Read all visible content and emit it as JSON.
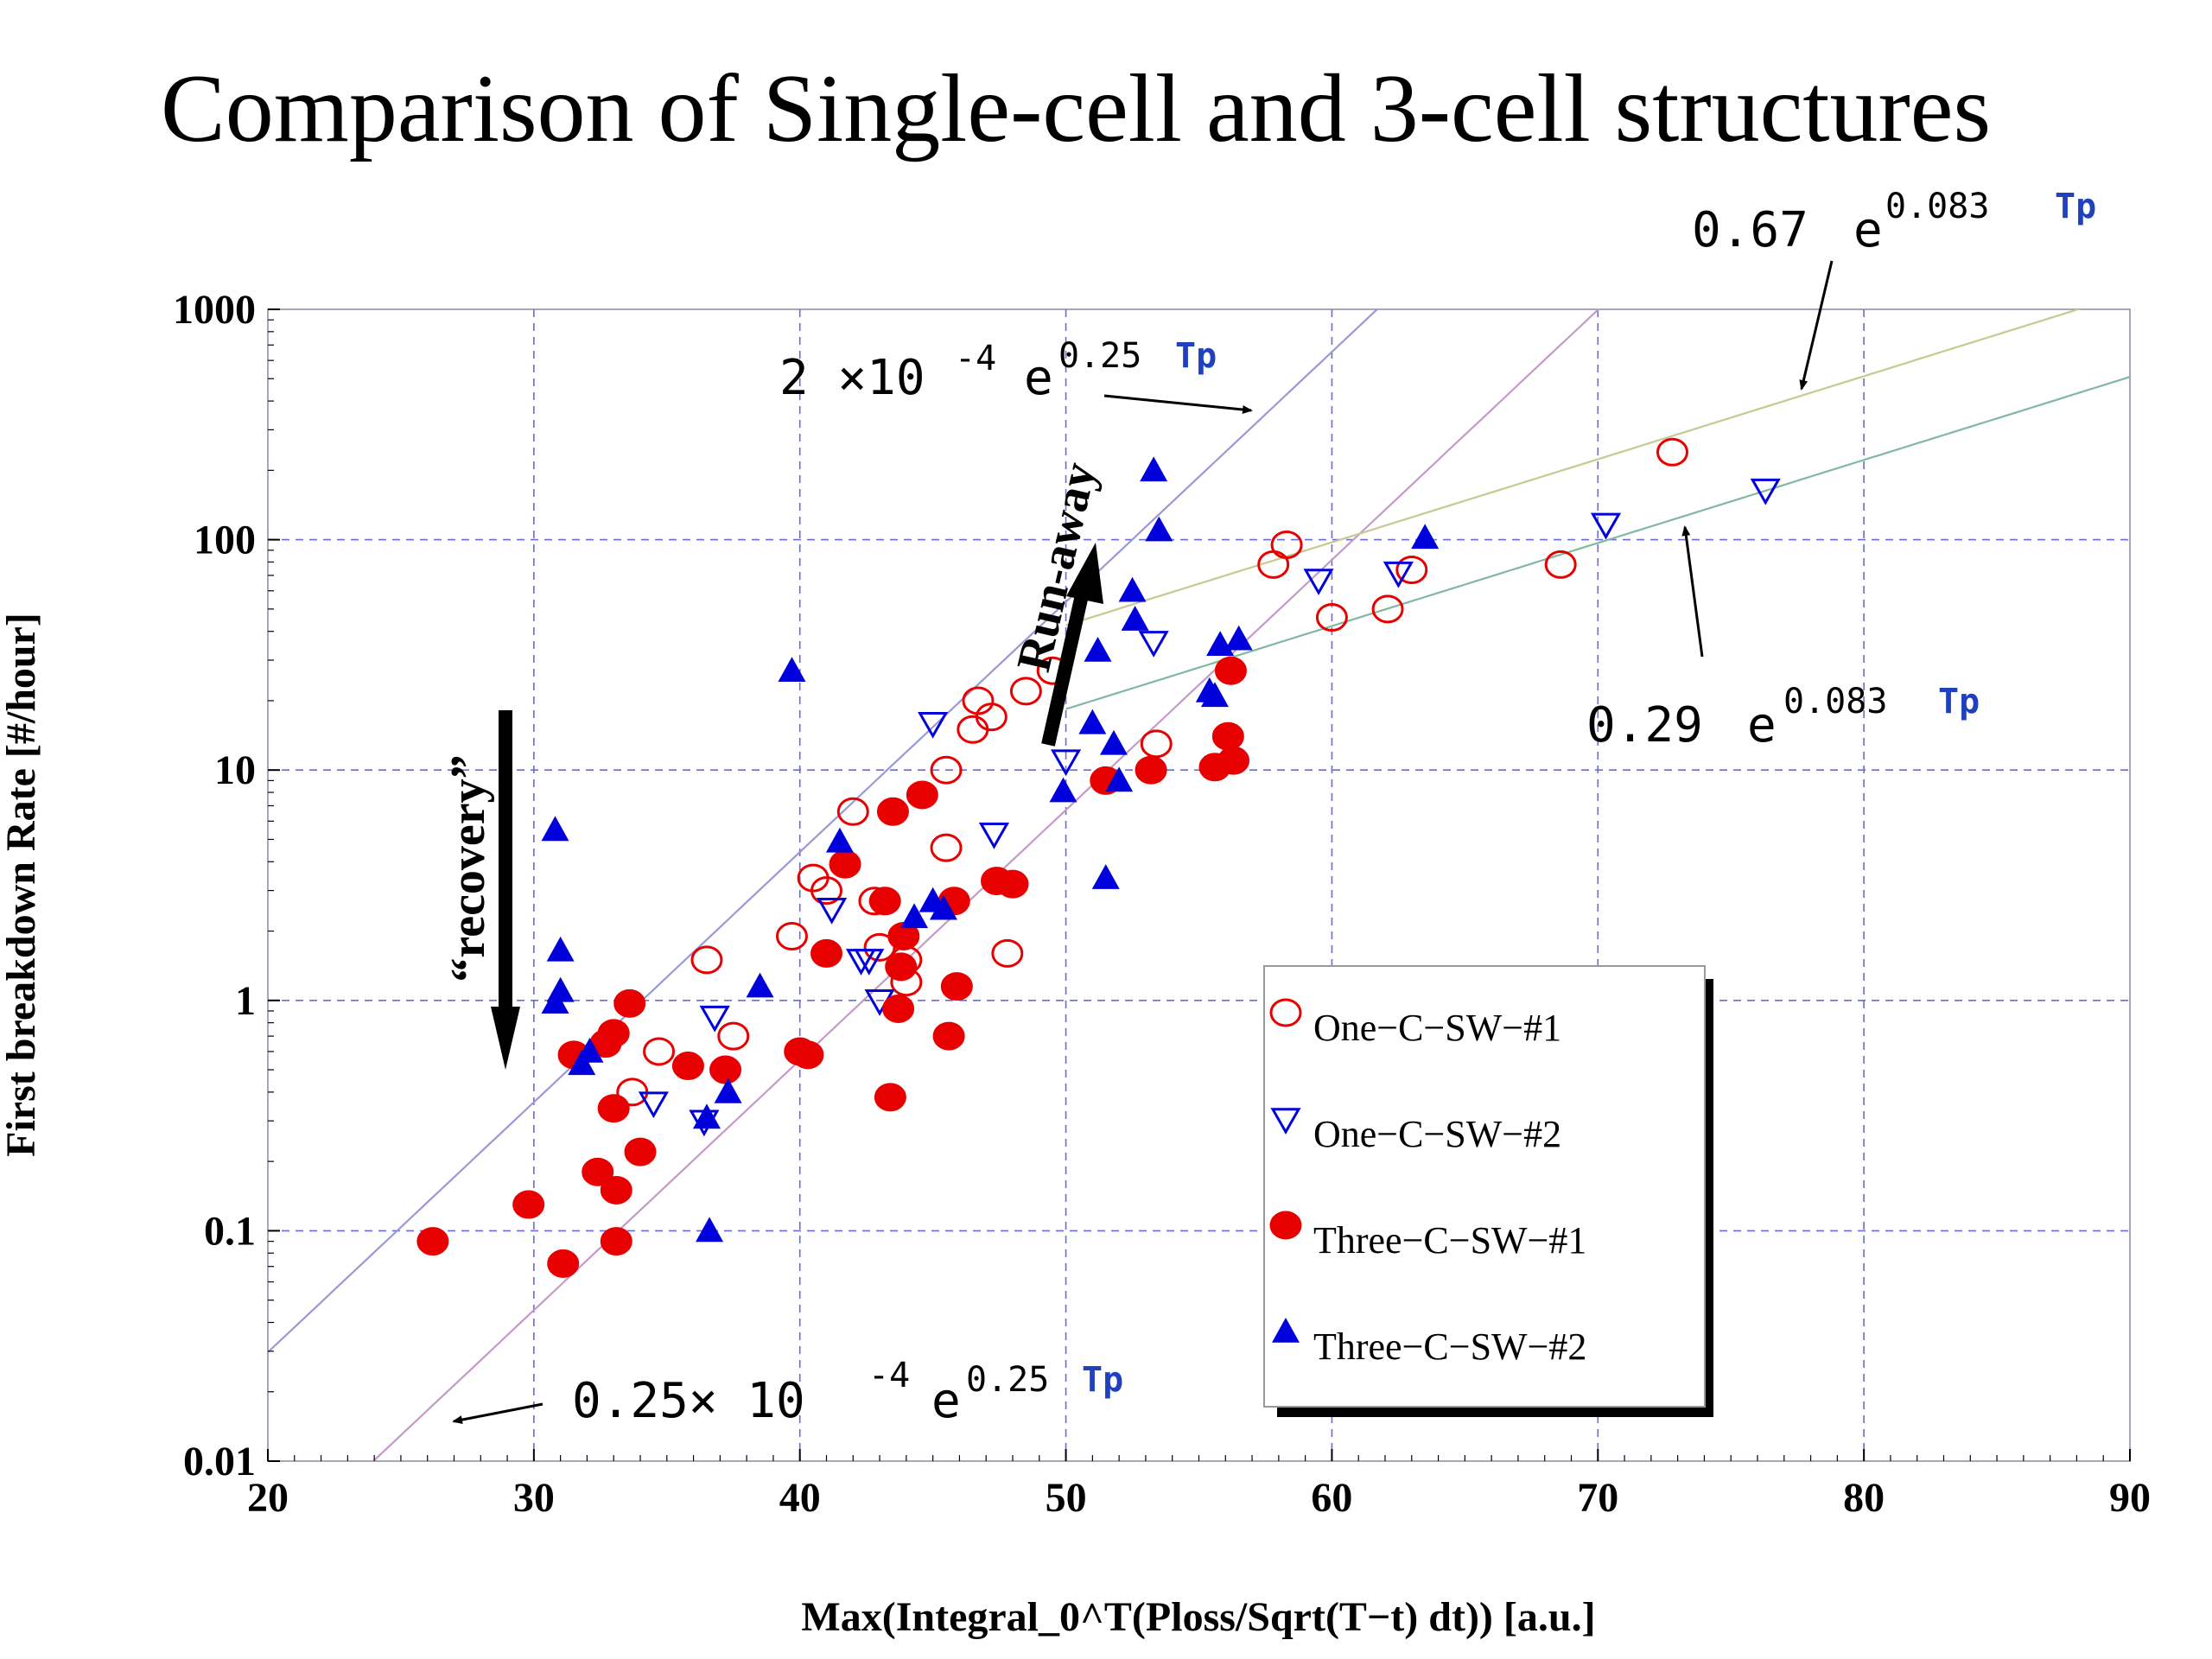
{
  "title": "Comparison of Single-cell and 3-cell structures",
  "colors": {
    "red_series": "#e80000",
    "blue_series": "#0000dd",
    "grid": "#6a6ad8",
    "fit_steep": "#9a98d8",
    "fit_steep_low": "#c49ac8",
    "fit_one": "#c8c890",
    "fit_two": "#80b8a0",
    "arrow": "#000000"
  },
  "annotations": {
    "runaway": "Run-away",
    "recovery": "“recovery”"
  },
  "fit_labels": {
    "top_right": {
      "coef": "0.67",
      "e": "e",
      "exp": "0.083",
      "var": "Tp"
    },
    "middle_right": {
      "coef": "0.29",
      "e": "e",
      "exp": "0.083",
      "var": "Tp"
    },
    "upper_left": {
      "coef": "2 ×10",
      "sup": "-4",
      "e": "e",
      "exp": "0.25",
      "var": "Tp"
    },
    "lower_left": {
      "coef": "0.25× 10",
      "sup": "-4",
      "e": "e",
      "exp": "0.25",
      "var": "Tp"
    }
  },
  "chart_data": {
    "type": "scatter",
    "title": "Comparison of Single-cell and 3-cell structures",
    "xlabel": "Max(Integral_0^T(Ploss/Sqrt(T−t) dt)) [a.u.]",
    "ylabel": "First breakdown Rate [#/hour]",
    "xlim": [
      20,
      90
    ],
    "ylim": [
      0.01,
      1000
    ],
    "yscale": "log",
    "grid": true,
    "legend_position": "bottom-right",
    "x_ticks": [
      "20",
      "30",
      "40",
      "50",
      "60",
      "70",
      "80",
      "90"
    ],
    "y_ticks": [
      "0.01",
      "0.1",
      "1",
      "10",
      "100",
      "1000"
    ],
    "series": [
      {
        "name": "One−C−SW−#1",
        "marker": "open-circle",
        "points": [
          [
            33.7,
            0.4
          ],
          [
            34.7,
            0.6
          ],
          [
            36.5,
            1.5
          ],
          [
            37.5,
            0.7
          ],
          [
            39.7,
            1.9
          ],
          [
            40.5,
            3.4
          ],
          [
            41.0,
            3.0
          ],
          [
            42.0,
            6.6
          ],
          [
            42.8,
            2.7
          ],
          [
            43.0,
            1.7
          ],
          [
            44.0,
            1.5
          ],
          [
            44.0,
            1.2
          ],
          [
            45.5,
            10.0
          ],
          [
            45.5,
            4.6
          ],
          [
            46.5,
            15.0
          ],
          [
            46.7,
            20.0
          ],
          [
            47.2,
            17.0
          ],
          [
            47.8,
            1.6
          ],
          [
            48.5,
            22.0
          ],
          [
            49.5,
            27.0
          ],
          [
            53.4,
            13.0
          ],
          [
            57.8,
            78.0
          ],
          [
            58.3,
            95.0
          ],
          [
            60.0,
            46.0
          ],
          [
            62.1,
            50.0
          ],
          [
            63.0,
            74.0
          ],
          [
            68.6,
            78.0
          ],
          [
            72.8,
            240.0
          ]
        ]
      },
      {
        "name": "One−C−SW−#2",
        "marker": "open-triangle-down",
        "points": [
          [
            34.5,
            0.36
          ],
          [
            36.4,
            0.3
          ],
          [
            36.8,
            0.85
          ],
          [
            41.2,
            2.5
          ],
          [
            42.3,
            1.5
          ],
          [
            42.6,
            1.5
          ],
          [
            43.0,
            1.0
          ],
          [
            45.0,
            16.0
          ],
          [
            47.3,
            5.3
          ],
          [
            50.0,
            11.0
          ],
          [
            53.3,
            36.0
          ],
          [
            59.5,
            67.0
          ],
          [
            62.5,
            72.0
          ],
          [
            70.3,
            117.0
          ],
          [
            76.3,
            165.0
          ]
        ]
      },
      {
        "name": "Three−C−SW−#1",
        "marker": "filled-circle",
        "points": [
          [
            26.2,
            0.09
          ],
          [
            29.8,
            0.13
          ],
          [
            31.1,
            0.072
          ],
          [
            31.5,
            0.58
          ],
          [
            32.4,
            0.18
          ],
          [
            32.7,
            0.65
          ],
          [
            33.0,
            0.72
          ],
          [
            33.0,
            0.34
          ],
          [
            33.1,
            0.15
          ],
          [
            33.1,
            0.09
          ],
          [
            33.6,
            0.97
          ],
          [
            34.0,
            0.22
          ],
          [
            35.8,
            0.52
          ],
          [
            37.2,
            0.5
          ],
          [
            40.0,
            0.6
          ],
          [
            40.3,
            0.58
          ],
          [
            41.0,
            1.6
          ],
          [
            41.7,
            3.9
          ],
          [
            43.2,
            2.7
          ],
          [
            43.4,
            0.38
          ],
          [
            43.5,
            6.6
          ],
          [
            43.7,
            0.92
          ],
          [
            43.8,
            1.4
          ],
          [
            43.9,
            1.9
          ],
          [
            44.6,
            7.8
          ],
          [
            45.6,
            0.7
          ],
          [
            45.8,
            2.7
          ],
          [
            45.9,
            1.15
          ],
          [
            47.4,
            3.3
          ],
          [
            48.0,
            3.2
          ],
          [
            51.5,
            9.0
          ],
          [
            53.2,
            10.0
          ],
          [
            55.6,
            10.3
          ],
          [
            56.1,
            14.0
          ],
          [
            56.2,
            27.0
          ],
          [
            56.3,
            11.0
          ]
        ]
      },
      {
        "name": "Three−C−SW−#2",
        "marker": "filled-triangle-up",
        "points": [
          [
            30.8,
            5.5
          ],
          [
            30.8,
            0.98
          ],
          [
            31.0,
            1.1
          ],
          [
            31.0,
            1.65
          ],
          [
            31.8,
            0.53
          ],
          [
            32.1,
            0.6
          ],
          [
            36.5,
            0.31
          ],
          [
            36.6,
            0.1
          ],
          [
            37.3,
            0.4
          ],
          [
            38.5,
            1.15
          ],
          [
            39.7,
            27.0
          ],
          [
            41.5,
            4.9
          ],
          [
            44.3,
            2.3
          ],
          [
            45.0,
            2.7
          ],
          [
            45.4,
            2.5
          ],
          [
            49.9,
            8.1
          ],
          [
            51.0,
            16.0
          ],
          [
            51.2,
            33.0
          ],
          [
            51.5,
            3.4
          ],
          [
            51.8,
            13.0
          ],
          [
            52.0,
            9.0
          ],
          [
            52.5,
            60.0
          ],
          [
            52.6,
            45.0
          ],
          [
            53.3,
            200.0
          ],
          [
            53.5,
            110.0
          ],
          [
            55.4,
            22.0
          ],
          [
            55.6,
            21.0
          ],
          [
            55.8,
            35.0
          ],
          [
            56.5,
            37.0
          ],
          [
            63.5,
            102.0
          ]
        ]
      }
    ],
    "fit_lines": [
      {
        "label": "2 ×10^-4 e^(0.25 Tp)",
        "a": 0.0002,
        "b": 0.25,
        "x_range": [
          20,
          90
        ]
      },
      {
        "label": "0.25× 10^-4 e^(0.25 Tp)",
        "a": 2.5e-05,
        "b": 0.25,
        "x_range": [
          20,
          90
        ]
      },
      {
        "label": "0.67 e^(0.083 Tp)",
        "a": 0.67,
        "b": 0.083,
        "x_range": [
          50,
          90
        ]
      },
      {
        "label": "0.29 e^(0.083 Tp)",
        "a": 0.29,
        "b": 0.083,
        "x_range": [
          50,
          90
        ]
      }
    ]
  }
}
